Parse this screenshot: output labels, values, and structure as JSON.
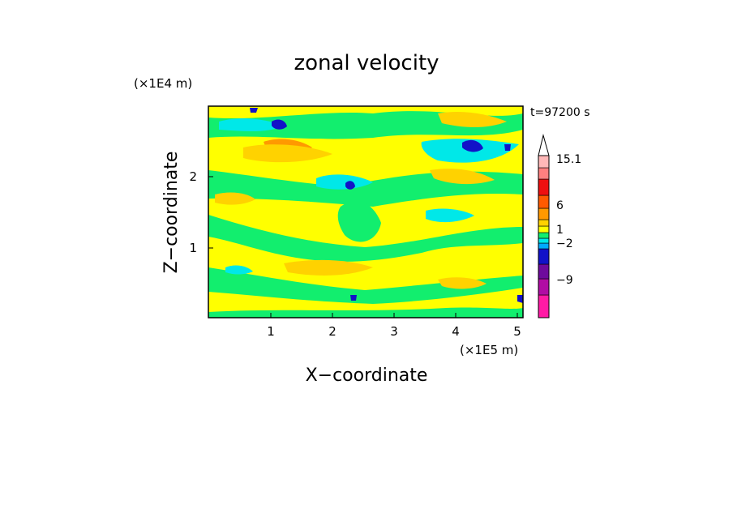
{
  "chart_data": {
    "type": "heatmap",
    "title": "zonal velocity",
    "time_label": "t=97200 s",
    "xlabel": "X−coordinate",
    "ylabel": "Z−coordinate",
    "x_scale_label": "(×1E5 m)",
    "y_scale_label": "(×1E4 m)",
    "xlim": [
      0,
      5.12
    ],
    "ylim": [
      0,
      2.97
    ],
    "x_ticks": [
      "1",
      "2",
      "3",
      "4",
      "5"
    ],
    "y_ticks": [
      "1",
      "2"
    ],
    "grid": false,
    "colorbar": {
      "levels": [
        {
          "color": "#ff1aa5"
        },
        {
          "color": "#b10ca4"
        },
        {
          "color": "#6e0a9c"
        },
        {
          "color": "#1212c8"
        },
        {
          "color": "#00aaff"
        },
        {
          "color": "#00e8e8"
        },
        {
          "color": "#12ee6e"
        },
        {
          "color": "#ffff00"
        },
        {
          "color": "#ffd200"
        },
        {
          "color": "#ff9900"
        },
        {
          "color": "#ff5a00"
        },
        {
          "color": "#ee1010"
        },
        {
          "color": "#ff8080"
        },
        {
          "color": "#ffb8b8"
        },
        {
          "color": "#ffdede"
        }
      ],
      "tick_labels": [
        "15.1",
        "6",
        "1",
        "−2",
        "−9"
      ]
    }
  }
}
